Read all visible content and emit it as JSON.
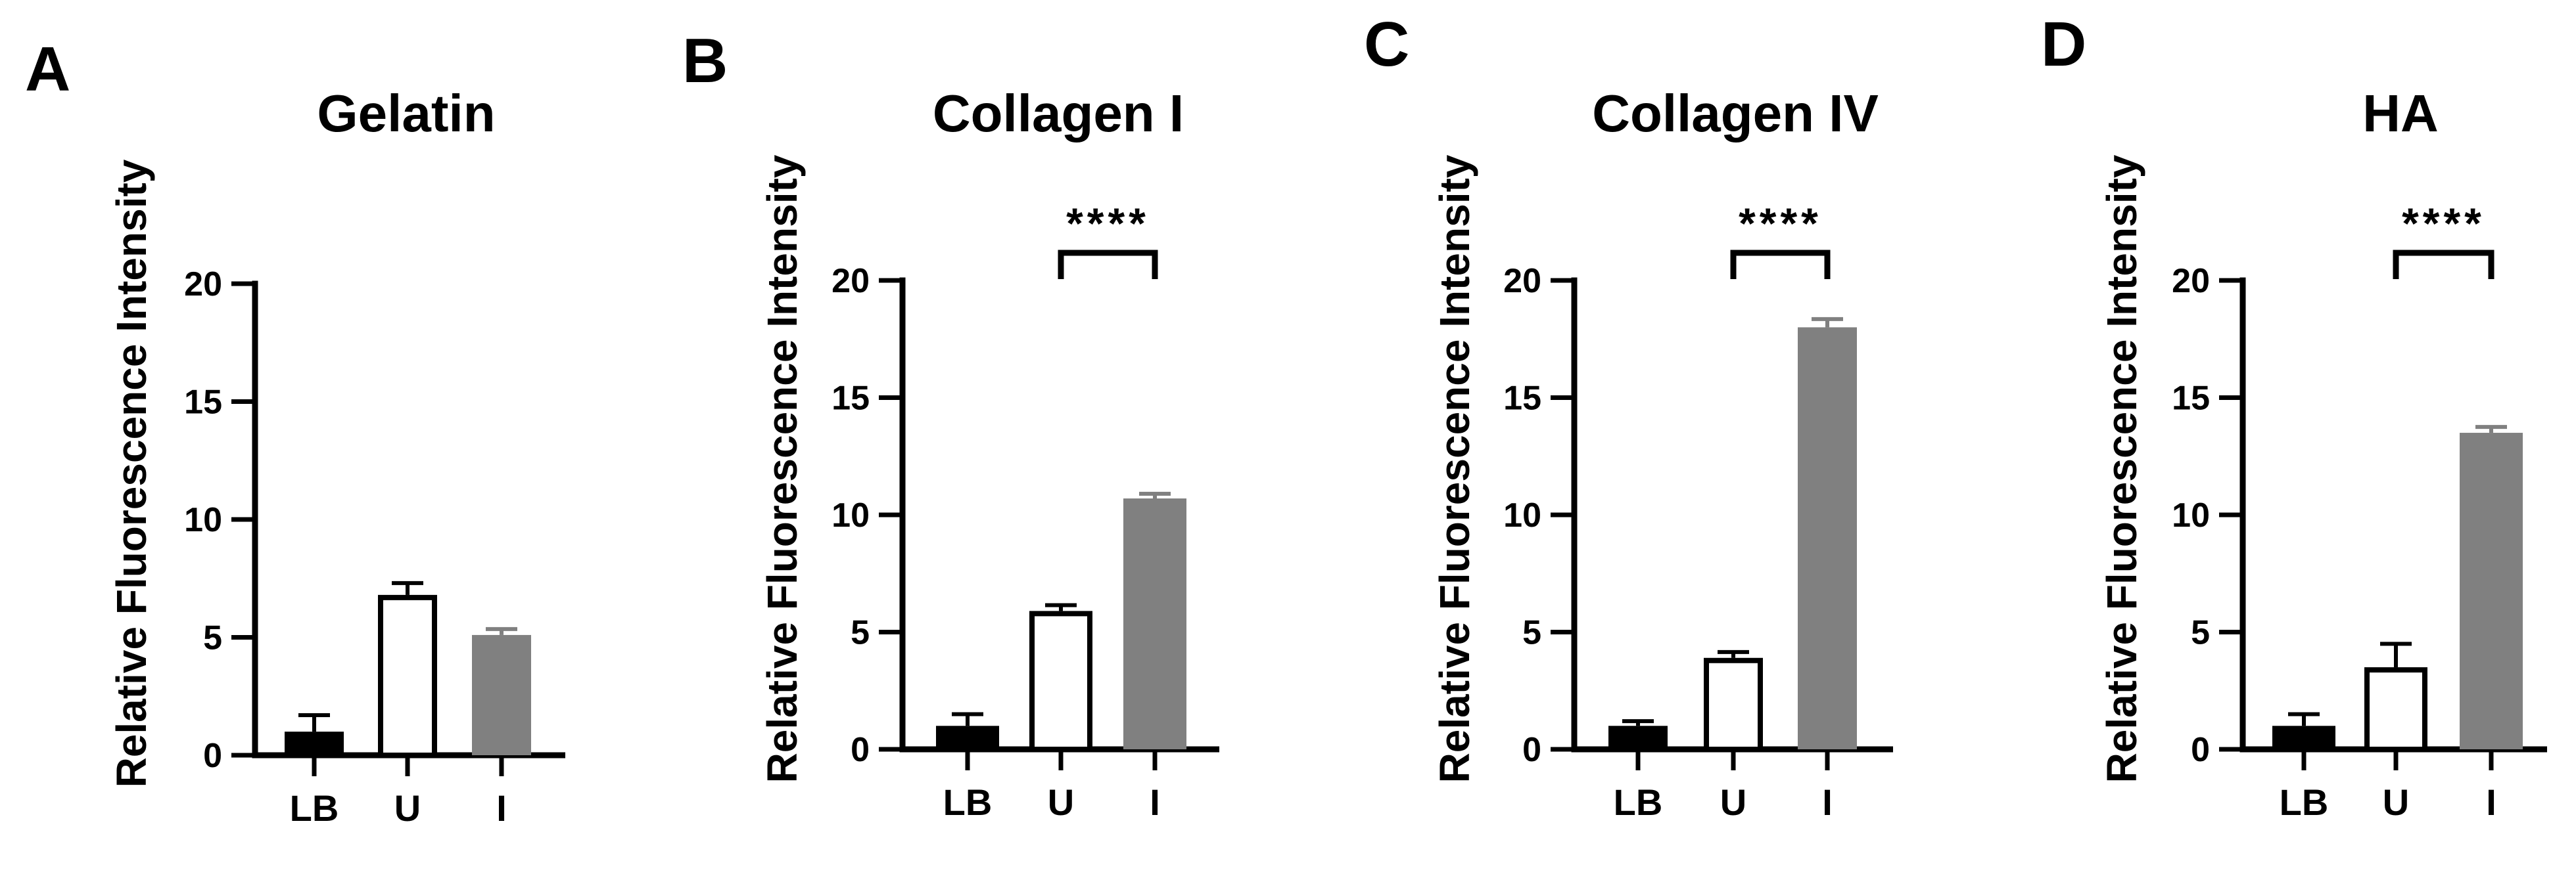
{
  "chart_data": [
    {
      "type": "bar",
      "panel": "A",
      "title": "Gelatin",
      "ylabel": "Relative Fluorescence Intensity",
      "xlabel": "",
      "categories": [
        "LB",
        "U",
        "I"
      ],
      "values": [
        1.0,
        6.8,
        5.1
      ],
      "errors": [
        0.7,
        0.5,
        0.25
      ],
      "bar_colors": [
        "#000000",
        "#ffffff",
        "#808080"
      ],
      "ylim": [
        0,
        20
      ],
      "yticks": [
        0,
        5,
        10,
        15,
        20
      ],
      "significance": null
    },
    {
      "type": "bar",
      "panel": "B",
      "title": "Collagen I",
      "ylabel": "Relative Fluorescence Intensity",
      "xlabel": "",
      "categories": [
        "LB",
        "U",
        "I"
      ],
      "values": [
        1.0,
        5.9,
        10.7
      ],
      "errors": [
        0.5,
        0.25,
        0.2
      ],
      "bar_colors": [
        "#000000",
        "#ffffff",
        "#808080"
      ],
      "ylim": [
        0,
        20
      ],
      "yticks": [
        0,
        5,
        10,
        15,
        20
      ],
      "significance": {
        "label": "****",
        "from": "U",
        "to": "I"
      }
    },
    {
      "type": "bar",
      "panel": "C",
      "title": "Collagen IV",
      "ylabel": "Relative Fluorescence Intensity",
      "xlabel": "",
      "categories": [
        "LB",
        "U",
        "I"
      ],
      "values": [
        1.0,
        3.9,
        18.0
      ],
      "errors": [
        0.2,
        0.25,
        0.35
      ],
      "bar_colors": [
        "#000000",
        "#ffffff",
        "#808080"
      ],
      "ylim": [
        0,
        20
      ],
      "yticks": [
        0,
        5,
        10,
        15,
        20
      ],
      "significance": {
        "label": "****",
        "from": "U",
        "to": "I"
      }
    },
    {
      "type": "bar",
      "panel": "D",
      "title": "HA",
      "ylabel": "Relative Fluorescence Intensity",
      "xlabel": "",
      "categories": [
        "LB",
        "U",
        "I"
      ],
      "values": [
        1.0,
        3.5,
        13.5
      ],
      "errors": [
        0.5,
        1.0,
        0.25
      ],
      "bar_colors": [
        "#000000",
        "#ffffff",
        "#808080"
      ],
      "ylim": [
        0,
        20
      ],
      "yticks": [
        0,
        5,
        10,
        15,
        20
      ],
      "significance": {
        "label": "****",
        "from": "U",
        "to": "I"
      }
    }
  ]
}
